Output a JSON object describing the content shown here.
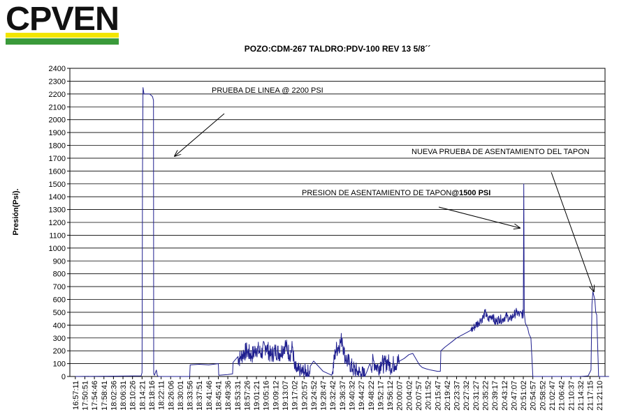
{
  "logo": {
    "text": "CPVEN",
    "colors": {
      "text": "#111111",
      "yellow": "#f2e600",
      "green": "#3a9a3a"
    }
  },
  "chart_data": {
    "type": "line",
    "title": "POZO:CDM-267 TALDRO:PDV-100 REV 13 5/8´´",
    "ylabel": "Presión(Psi).",
    "xlabel": "",
    "ylim": [
      0,
      2400
    ],
    "y_ticks": [
      0,
      100,
      200,
      300,
      400,
      500,
      600,
      700,
      800,
      900,
      1000,
      1100,
      1200,
      1300,
      1400,
      1500,
      1600,
      1700,
      1800,
      1900,
      2000,
      2100,
      2200,
      2300,
      2400
    ],
    "grid": true,
    "line_color": "#1f1f8f",
    "categories": [
      "16:57:11",
      "17:50:51",
      "17:54:46",
      "17:58:41",
      "18:02:36",
      "18:06:31",
      "18:10:26",
      "18:14:21",
      "18:18:16",
      "18:22:11",
      "18:26:06",
      "18:30:01",
      "18:33:56",
      "18:37:51",
      "18:41:46",
      "18:45:41",
      "18:49:36",
      "18:53:31",
      "18:57:26",
      "19:01:21",
      "19:05:16",
      "19:09:12",
      "19:13:07",
      "19:17:02",
      "19:20:57",
      "19:24:52",
      "19:28:47",
      "19:32:42",
      "19:36:37",
      "19:40:32",
      "19:44:27",
      "19:48:22",
      "19:52:17",
      "19:56:12",
      "20:00:07",
      "20:04:02",
      "20:07:57",
      "20:11:52",
      "20:15:47",
      "20:19:42",
      "20:23:37",
      "20:27:32",
      "20:31:27",
      "20:35:22",
      "20:39:17",
      "20:43:12",
      "20:47:07",
      "20:51:02",
      "20:54:57",
      "20:58:52",
      "21:02:47",
      "21:06:42",
      "21:10:37",
      "21:14:32",
      "21:17:15",
      "21:21:10"
    ],
    "series": [
      {
        "x": [
          0,
          6.9,
          7.0,
          7.05,
          7.1,
          7.2,
          7.4,
          7.6,
          7.8,
          8.1,
          8.2,
          8.22,
          8.3,
          8.5,
          8.6,
          8.7,
          8.8,
          9.0,
          9.6,
          9.8,
          12.0,
          12.05,
          13.0,
          14.0,
          15.0,
          15.05,
          16.0,
          16.5,
          16.55,
          17.0,
          17.3,
          17.6,
          18.0,
          18.5,
          19.0,
          19.5,
          20.0,
          20.5,
          21.0,
          21.5,
          22.0,
          22.5,
          22.8,
          23.0,
          23.3,
          23.6,
          24.0,
          24.6,
          24.65,
          25.0,
          26.0,
          26.9,
          27.0,
          27.3,
          27.8,
          28.0,
          28.2,
          28.5,
          28.8,
          29.1,
          29.5,
          30.0,
          30.4,
          30.6,
          30.9,
          31.0,
          31.3,
          31.5,
          31.8,
          32.1,
          32.4,
          32.8,
          33.0,
          33.5,
          34.0,
          34.5,
          35.0,
          35.4,
          35.8,
          36.1,
          36.4,
          36.8,
          37.3,
          38.0,
          38.3,
          38.35,
          38.8,
          39.5,
          40.0,
          40.5,
          41.0,
          41.5,
          41.8,
          42.0,
          42.3,
          42.5,
          42.8,
          43.0,
          43.3,
          43.5,
          43.8,
          44.0,
          44.5,
          44.8,
          45.0,
          45.3,
          45.6,
          46.0,
          46.3,
          46.6,
          46.8,
          47.0,
          47.05,
          47.1,
          47.2,
          47.3,
          47.45,
          47.6,
          47.8,
          48.0,
          48.3,
          48.6,
          49.0,
          49.3,
          50.0,
          51.0,
          52.0,
          53.0,
          53.8,
          54.1,
          54.2,
          54.3,
          54.5,
          54.6,
          54.7,
          54.9,
          55.2,
          56.0
        ],
        "y": [
          0,
          5,
          30,
          1600,
          2250,
          2200,
          2200,
          2200,
          2200,
          2180,
          2150,
          20,
          10,
          50,
          10,
          0,
          0,
          0,
          0,
          0,
          0,
          90,
          95,
          90,
          100,
          10,
          15,
          20,
          110,
          150,
          140,
          180,
          200,
          160,
          220,
          180,
          240,
          160,
          200,
          180,
          250,
          170,
          230,
          60,
          40,
          30,
          35,
          20,
          80,
          120,
          40,
          10,
          40,
          200,
          260,
          300,
          180,
          120,
          100,
          60,
          40,
          20,
          5,
          40,
          100,
          80,
          120,
          90,
          70,
          110,
          90,
          120,
          80,
          100,
          120,
          140,
          170,
          180,
          130,
          90,
          70,
          60,
          50,
          40,
          40,
          200,
          230,
          270,
          300,
          320,
          340,
          360,
          380,
          400,
          420,
          440,
          460,
          500,
          440,
          460,
          480,
          420,
          450,
          440,
          460,
          470,
          440,
          480,
          500,
          480,
          490,
          480,
          1500,
          500,
          420,
          400,
          380,
          330,
          300,
          0,
          0,
          0,
          0,
          0,
          0,
          0,
          0,
          0,
          5,
          50,
          560,
          660,
          600,
          500,
          480,
          0,
          0,
          0
        ],
        "name": ""
      }
    ],
    "annotations": [
      {
        "text": "PRUEBA DE LINEA @ 2200 PSI",
        "bold_part": ""
      },
      {
        "text": "NUEVA PRUEBA DE ASENTAMIENTO DEL TAPON",
        "bold_part": ""
      },
      {
        "text": "PRESION DE ASENTAMIENTO DE TAPON",
        "bold_part": "@1500 PSI"
      }
    ]
  }
}
